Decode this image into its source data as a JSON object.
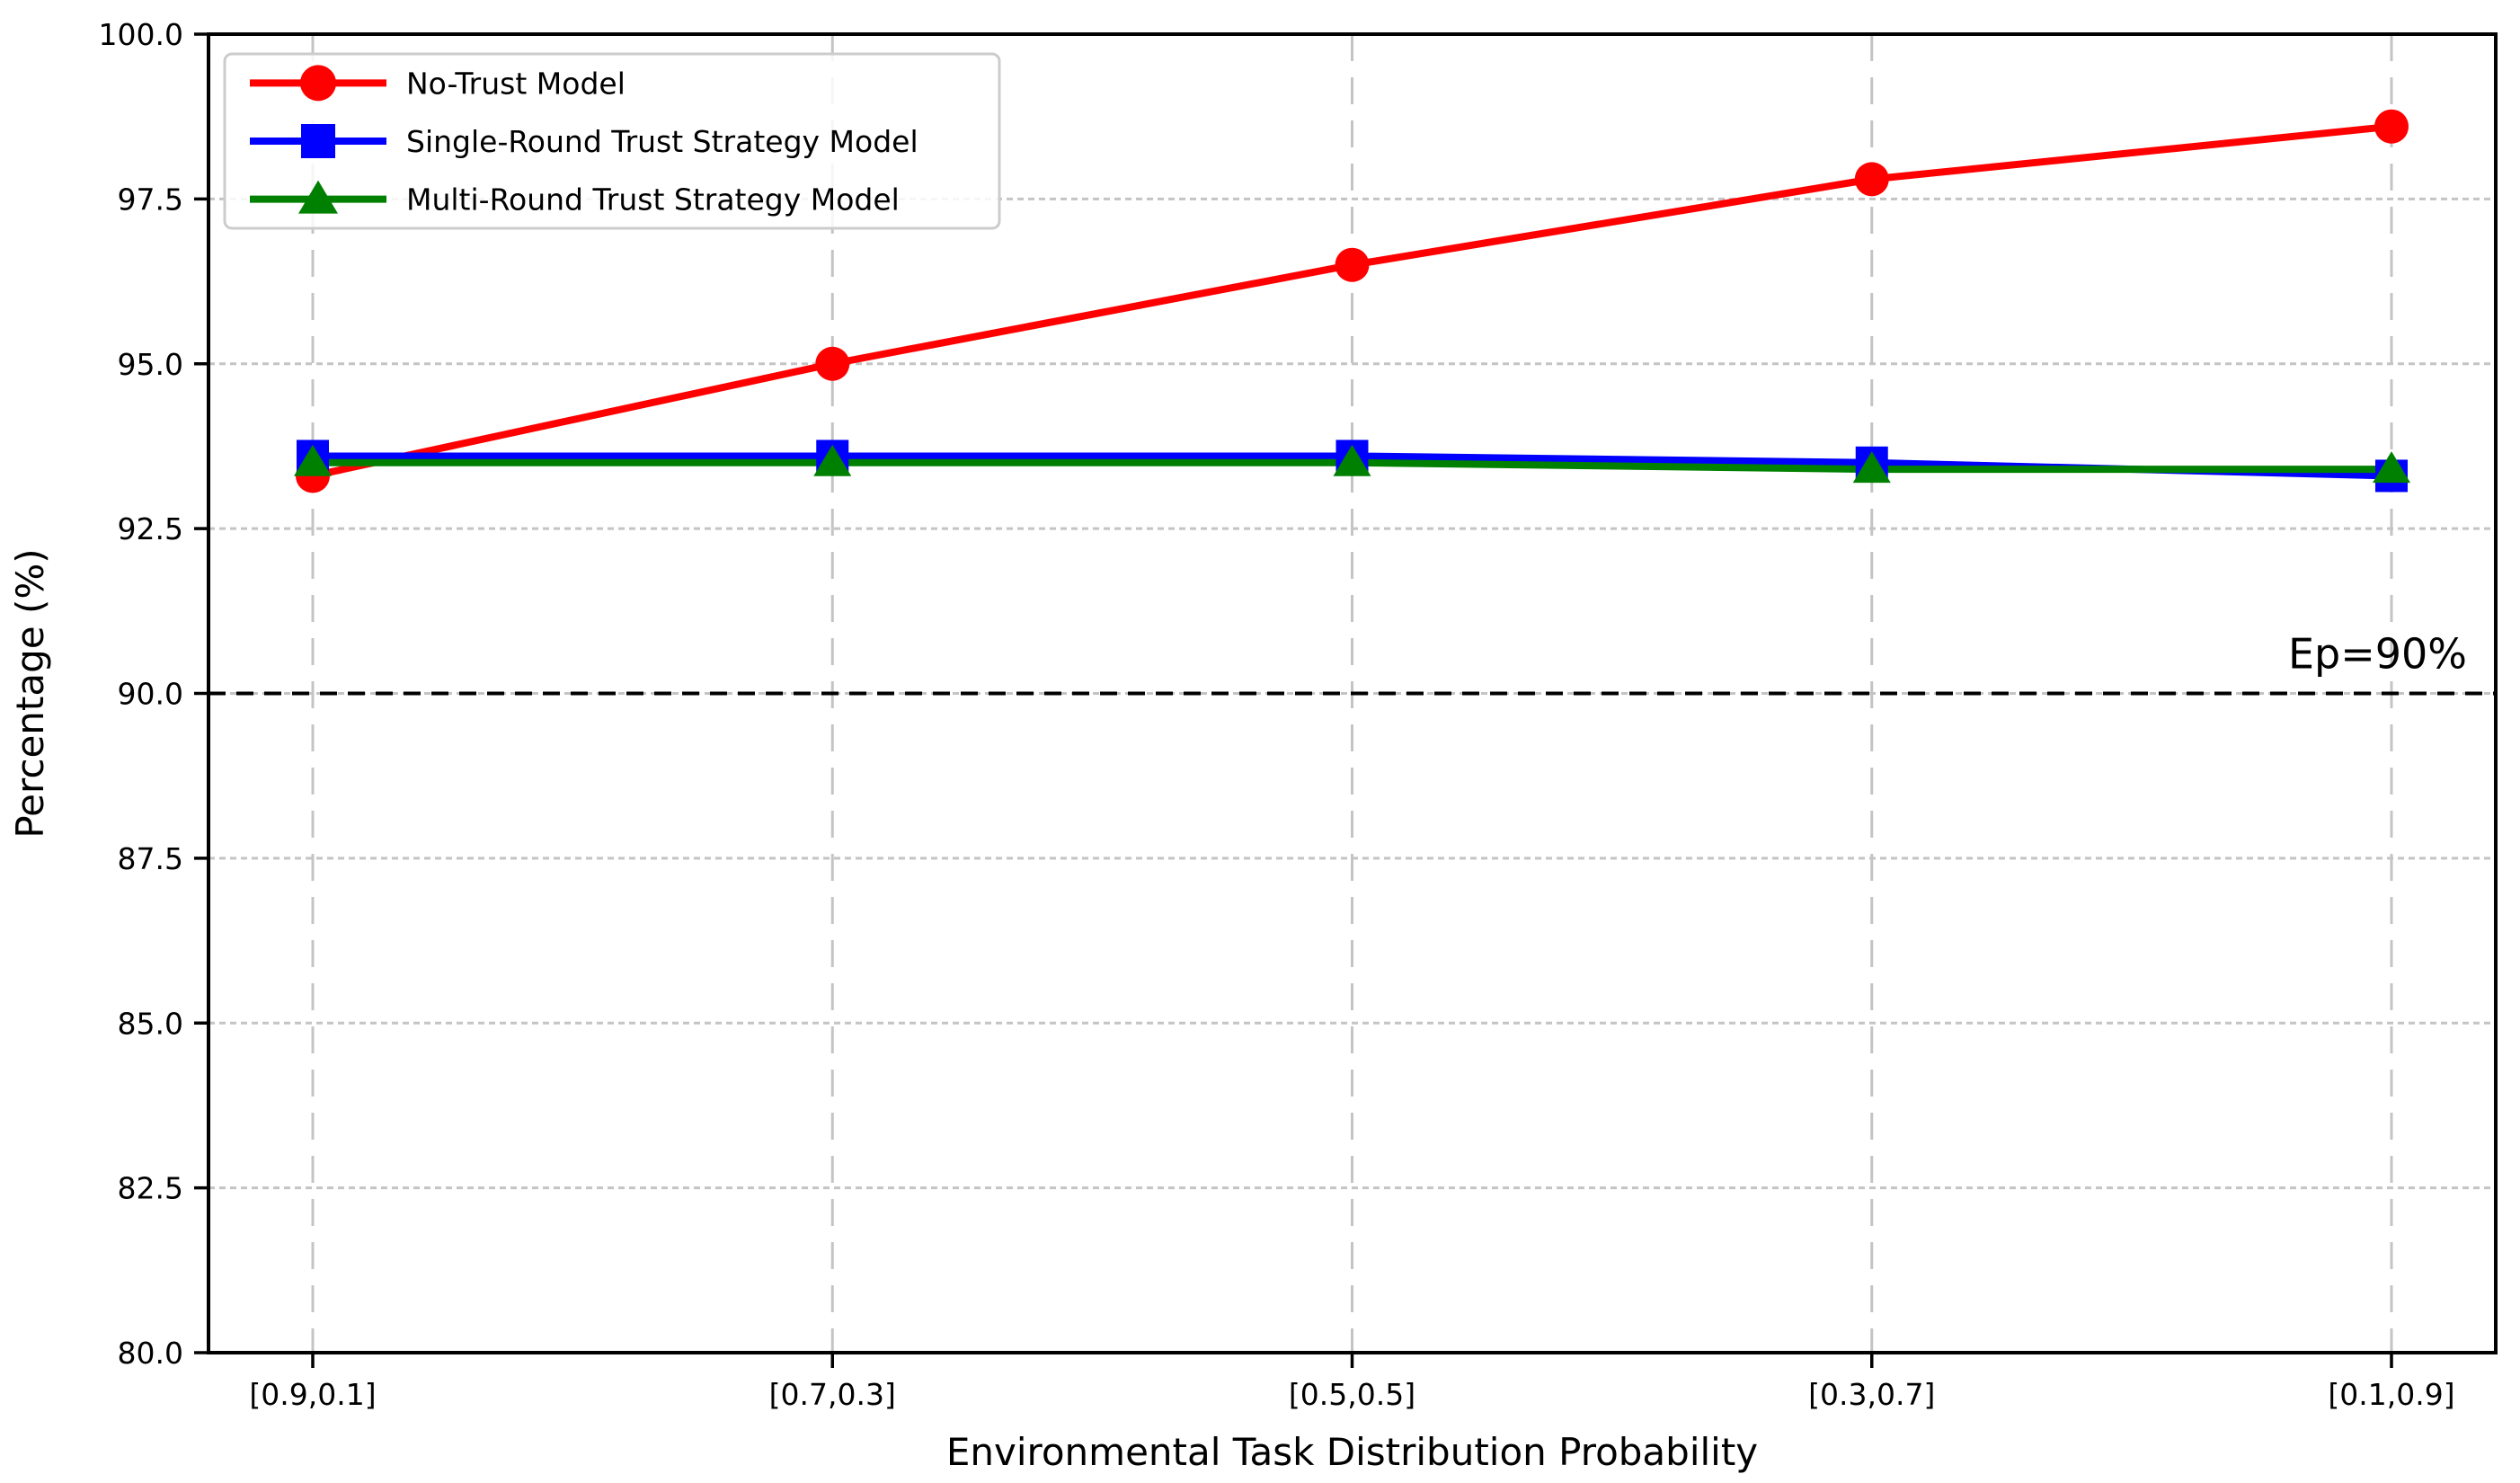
{
  "chart_data": {
    "type": "line",
    "title": "",
    "xlabel": "Environmental Task Distribution Probability",
    "ylabel": "Percentage (%)",
    "categories": [
      "[0.9,0.1]",
      "[0.7,0.3]",
      "[0.5,0.5]",
      "[0.3,0.7]",
      "[0.1,0.9]"
    ],
    "ylim": [
      80.0,
      100.0
    ],
    "yticks": [
      80.0,
      82.5,
      85.0,
      87.5,
      90.0,
      92.5,
      95.0,
      97.5,
      100.0
    ],
    "grid": true,
    "legend_position": "upper-left",
    "series": [
      {
        "name": "No-Trust Model",
        "color": "#ff0000",
        "marker": "circle",
        "values": [
          93.3,
          95.0,
          96.5,
          97.8,
          98.6
        ]
      },
      {
        "name": "Single-Round Trust Strategy Model",
        "color": "#0000ff",
        "marker": "square",
        "values": [
          93.6,
          93.6,
          93.6,
          93.5,
          93.3
        ]
      },
      {
        "name": "Multi-Round Trust Strategy Model",
        "color": "#008000",
        "marker": "triangle-up",
        "values": [
          93.5,
          93.5,
          93.5,
          93.4,
          93.4
        ]
      }
    ],
    "reference_line": {
      "y": 90.0,
      "label": "Ep=90%",
      "color": "#000000",
      "style": "dashed"
    }
  }
}
